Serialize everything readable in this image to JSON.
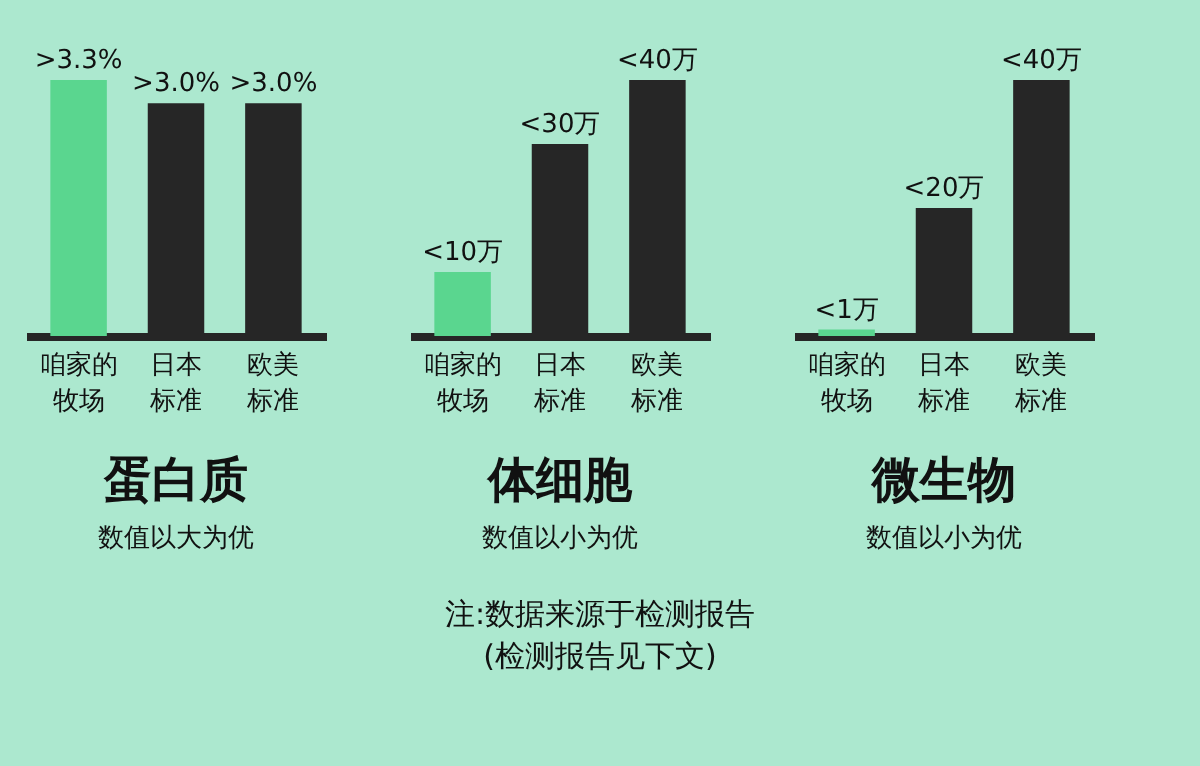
{
  "chart_data": [
    {
      "type": "bar",
      "title": "蛋白质",
      "subtitle": "数值以大为优",
      "categories": [
        "咱家的牧场",
        "日本标准",
        "欧美标准"
      ],
      "values": [
        3.3,
        3.0,
        3.0
      ],
      "tick_labels": "x",
      "colors": [
        "#5ad68f",
        "#262626",
        "#262626"
      ],
      "value_labels": [
        ">3.3%",
        ">3.0%",
        ">3.0%"
      ],
      "annotations": [
        "注:数据来源于检测报告",
        "(检测报告见下文)"
      ]
    },
    {
      "type": "bar",
      "title": "体细胞",
      "subtitle": "数值以小为优",
      "categories": [
        "咱家的牧场",
        "日本标准",
        "欧美标准"
      ],
      "values": [
        10,
        30,
        40
      ],
      "tick_labels": "x",
      "colors": [
        "#5ad68f",
        "#262626",
        "#262626"
      ],
      "value_labels": [
        "<10万",
        "<30万",
        "<40万"
      ]
    },
    {
      "type": "bar",
      "title": "微生物",
      "subtitle": "数值以小为优",
      "categories": [
        "咱家的牧场",
        "日本标准",
        "欧美标准"
      ],
      "values": [
        1,
        20,
        40
      ],
      "tick_labels": "x",
      "colors": [
        "#5ad68f",
        "#262626",
        "#262626"
      ],
      "value_labels": [
        "<1万",
        "<20万",
        "<40万"
      ]
    }
  ]
}
